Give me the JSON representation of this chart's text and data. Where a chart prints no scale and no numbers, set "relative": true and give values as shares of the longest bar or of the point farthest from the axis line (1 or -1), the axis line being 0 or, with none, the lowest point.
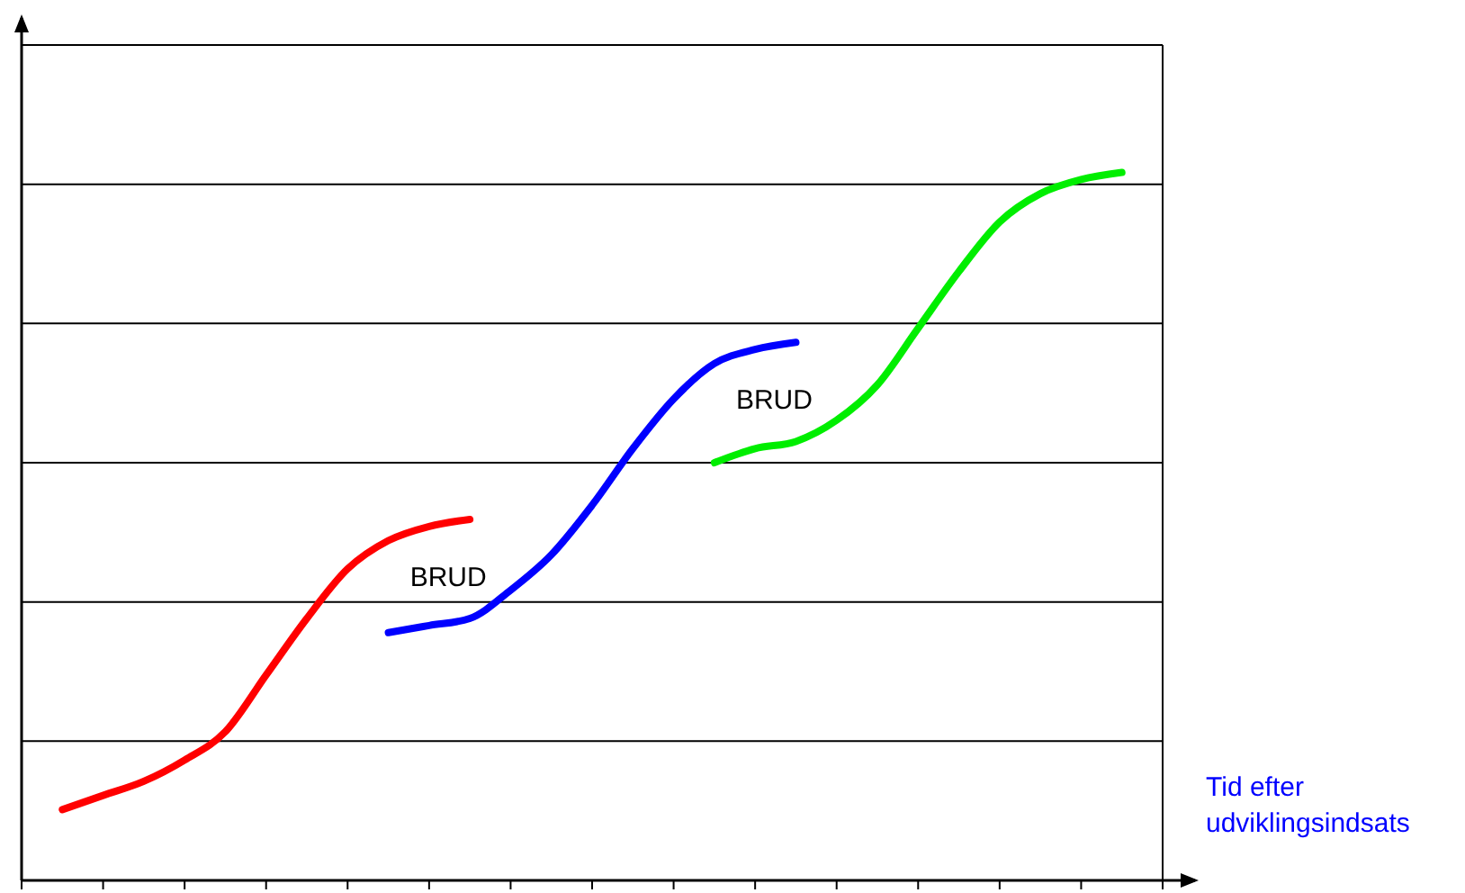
{
  "chart_data": {
    "type": "line",
    "relative": true,
    "xlabel": "Tid efter udviklingsindsats",
    "categories": [
      null,
      null,
      null,
      null,
      null,
      null,
      null,
      null,
      null,
      null,
      null,
      null,
      null,
      null,
      null,
      null,
      null,
      null,
      null,
      null,
      null,
      null,
      null,
      null,
      null,
      null,
      null,
      null,
      null
    ],
    "series": [
      {
        "color": "#ff0000",
        "values": [
          null,
          0.1,
          0.12,
          0.14,
          0.17,
          0.21,
          0.29,
          0.37,
          0.44,
          0.48,
          0.5,
          0.51,
          null,
          null,
          null,
          null,
          null,
          null,
          null,
          null,
          null,
          null,
          null,
          null,
          null,
          null,
          null,
          null,
          null
        ]
      },
      {
        "color": "#0000ff",
        "values": [
          null,
          null,
          null,
          null,
          null,
          null,
          null,
          null,
          null,
          0.35,
          0.36,
          0.37,
          0.41,
          0.46,
          0.53,
          0.61,
          0.68,
          0.73,
          0.75,
          0.76,
          null,
          null,
          null,
          null,
          null,
          null,
          null,
          null,
          null
        ]
      },
      {
        "color": "#00ee00",
        "values": [
          null,
          null,
          null,
          null,
          null,
          null,
          null,
          null,
          null,
          null,
          null,
          null,
          null,
          null,
          null,
          null,
          null,
          0.59,
          0.61,
          0.62,
          0.65,
          0.7,
          0.78,
          0.86,
          0.93,
          0.97,
          0.99,
          1,
          null
        ]
      }
    ],
    "annotations": [
      "BRUD",
      "BRUD"
    ],
    "grid": "y",
    "legend": false,
    "marker": "none",
    "line_style": "solid"
  }
}
